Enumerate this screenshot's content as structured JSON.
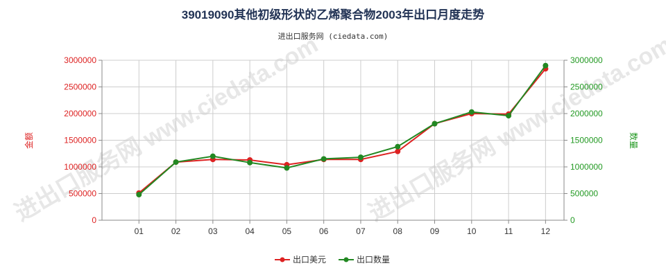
{
  "title": "39019090其他初级形状的乙烯聚合物2003年出口月度走势",
  "subtitle": "进出口服务网 (ciedata.com)",
  "watermark": "进出口服务网 www.ciedata.com",
  "chart_data": {
    "type": "line",
    "categories": [
      "01",
      "02",
      "03",
      "04",
      "05",
      "06",
      "07",
      "08",
      "09",
      "10",
      "11",
      "12"
    ],
    "ylabel_left": "金额",
    "ylabel_right": "数量",
    "ylim_left": [
      0,
      3000000
    ],
    "ylim_right": [
      0,
      3000000
    ],
    "yticks_left": [
      "0",
      "500000",
      "1000000",
      "1500000",
      "2000000",
      "2500000",
      "3000000"
    ],
    "yticks_right": [
      "0",
      "500000",
      "1000000",
      "1500000",
      "2000000",
      "2500000",
      "3000000"
    ],
    "grid": true,
    "legend_position": "bottom-center",
    "series": [
      {
        "name": "出口美元",
        "axis": "left",
        "color": "#dd2222",
        "values": [
          510000,
          1090000,
          1140000,
          1130000,
          1040000,
          1140000,
          1140000,
          1290000,
          1810000,
          2000000,
          1990000,
          2840000
        ]
      },
      {
        "name": "出口数量",
        "axis": "right",
        "color": "#228822",
        "values": [
          480000,
          1090000,
          1200000,
          1080000,
          980000,
          1150000,
          1180000,
          1380000,
          1810000,
          2030000,
          1960000,
          2900000
        ]
      }
    ]
  }
}
